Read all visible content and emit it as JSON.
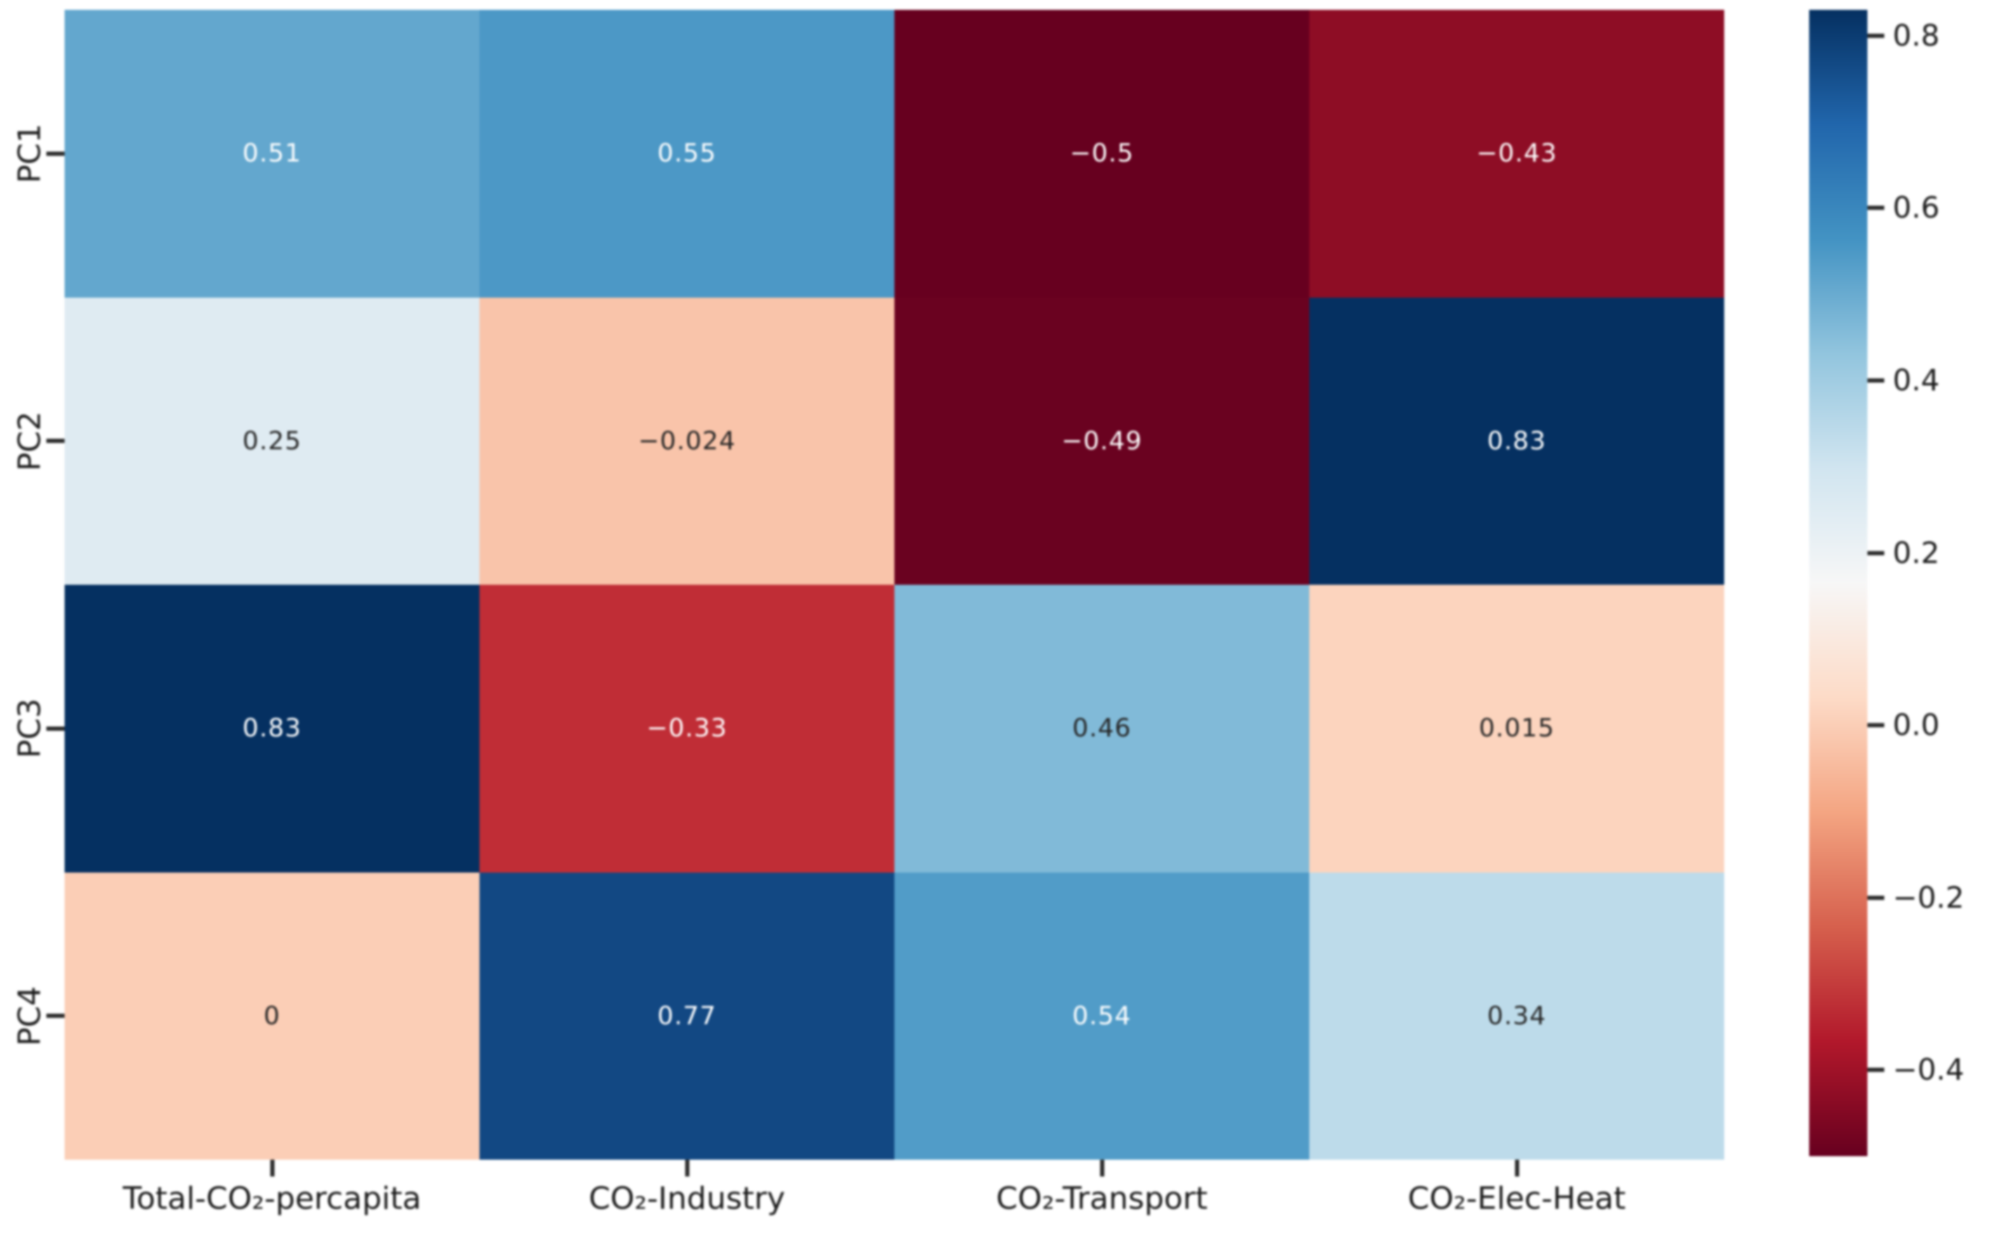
{
  "figure": {
    "background": "#ffffff",
    "text_color": "#1c1c1c"
  },
  "chart_data": {
    "type": "heatmap",
    "title": "",
    "xlabel": "",
    "ylabel": "",
    "rows": [
      "PC1",
      "PC2",
      "PC3",
      "PC4"
    ],
    "columns": [
      "Total-CO₂-percapita",
      "CO₂-Industry",
      "CO₂-Transport",
      "CO₂-Elec-Heat"
    ],
    "values": [
      [
        0.51,
        0.55,
        -0.5,
        -0.43
      ],
      [
        0.25,
        -0.024,
        -0.49,
        0.83
      ],
      [
        0.83,
        -0.33,
        0.46,
        0.015
      ],
      [
        0,
        0.77,
        0.54,
        0.34
      ]
    ],
    "labels": [
      [
        "0.51",
        "0.55",
        "−0.5",
        "−0.43"
      ],
      [
        "0.25",
        "−0.024",
        "−0.49",
        "0.83"
      ],
      [
        "0.83",
        "−0.33",
        "0.46",
        "0.015"
      ],
      [
        "0",
        "0.77",
        "0.54",
        "0.34"
      ]
    ],
    "cell_colors": [
      [
        "#63a7ce",
        "#4c98c6",
        "#67001f",
        "#8e0d25"
      ],
      [
        "#dfebf2",
        "#f9c4aa",
        "#6a0220",
        "#053061"
      ],
      [
        "#053061",
        "#c02d36",
        "#81bad8",
        "#fcd4be"
      ],
      [
        "#fbceb6",
        "#124883",
        "#519cc8",
        "#bddbea"
      ]
    ],
    "text_colors": [
      [
        "#ffffff",
        "#ffffff",
        "#ffffff",
        "#ffffff"
      ],
      [
        "#262626",
        "#262626",
        "#ffffff",
        "#ffffff"
      ],
      [
        "#ffffff",
        "#ffffff",
        "#262626",
        "#262626"
      ],
      [
        "#262626",
        "#ffffff",
        "#ffffff",
        "#262626"
      ]
    ],
    "colormap": "RdBu",
    "vmin": -0.5,
    "vmax": 0.83,
    "grid": false,
    "legend_position": "right-colorbar",
    "colorbar": {
      "tick_labels": [
        "0.8",
        "0.6",
        "0.4",
        "0.2",
        "0.0",
        "−0.2",
        "−0.4"
      ],
      "tick_values": [
        0.8,
        0.6,
        0.4,
        0.2,
        0.0,
        -0.2,
        -0.4
      ],
      "gradient_stops": [
        {
          "color": "#053061",
          "pos": 0
        },
        {
          "color": "#2166ac",
          "pos": 10
        },
        {
          "color": "#4393c3",
          "pos": 20
        },
        {
          "color": "#92c5de",
          "pos": 30
        },
        {
          "color": "#d1e5f0",
          "pos": 40
        },
        {
          "color": "#f7f7f7",
          "pos": 50
        },
        {
          "color": "#fddbc7",
          "pos": 60
        },
        {
          "color": "#f4a582",
          "pos": 70
        },
        {
          "color": "#d6604d",
          "pos": 80
        },
        {
          "color": "#b2182b",
          "pos": 90
        },
        {
          "color": "#67001f",
          "pos": 100
        }
      ]
    }
  }
}
